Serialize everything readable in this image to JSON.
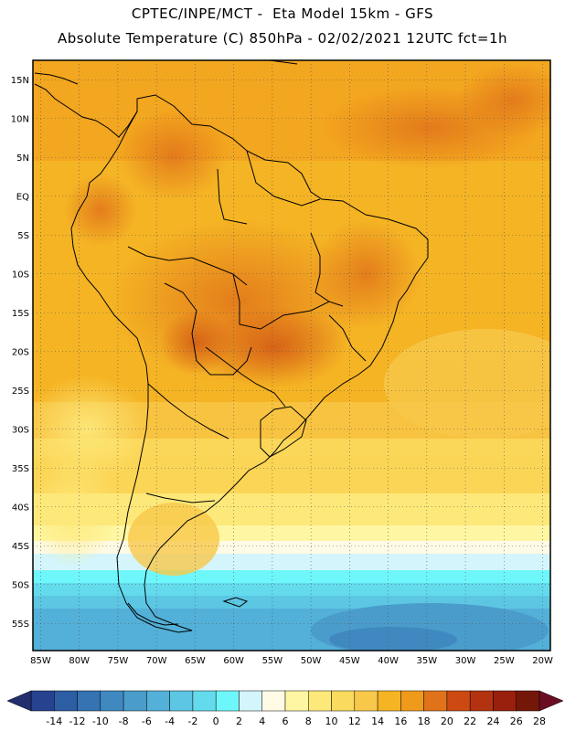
{
  "header": {
    "title_line1": "CPTEC/INPE/MCT -  Eta Model 15km - GFS",
    "title_line2": "Absolute Temperature (C) 850hPa - 02/02/2021 12UTC fct=1h"
  },
  "map": {
    "lon_range": [
      -86,
      -19
    ],
    "lat_range": [
      -58.5,
      17.5
    ],
    "lon_ticks": [
      "85W",
      "80W",
      "75W",
      "70W",
      "65W",
      "60W",
      "55W",
      "50W",
      "45W",
      "40W",
      "35W",
      "30W",
      "25W",
      "20W"
    ],
    "lat_ticks": [
      "15N",
      "10N",
      "5N",
      "EQ",
      "5S",
      "10S",
      "15S",
      "20S",
      "25S",
      "30S",
      "35S",
      "40S",
      "45S",
      "50S",
      "55S"
    ],
    "grid": "dotted"
  },
  "colorbar": {
    "labels": [
      "-14",
      "-12",
      "-10",
      "-8",
      "-6",
      "-4",
      "-2",
      "0",
      "2",
      "4",
      "6",
      "8",
      "10",
      "12",
      "14",
      "16",
      "18",
      "20",
      "22",
      "24",
      "26",
      "28"
    ],
    "colors": [
      "#27428f",
      "#2d5ea3",
      "#3573b2",
      "#3f89c0",
      "#4a9ccb",
      "#53b0d8",
      "#5cc6e3",
      "#63dbec",
      "#6ef7fb",
      "#d3f5fb",
      "#fffae6",
      "#fef6a2",
      "#fde87a",
      "#fbdb5e",
      "#f8c84a",
      "#f5b424",
      "#f09a1c",
      "#e0731a",
      "#cc4a12",
      "#b33310",
      "#98200c",
      "#751708"
    ],
    "left_arrow_color": "#212f6e",
    "right_arrow_color": "#6b0d22"
  }
}
